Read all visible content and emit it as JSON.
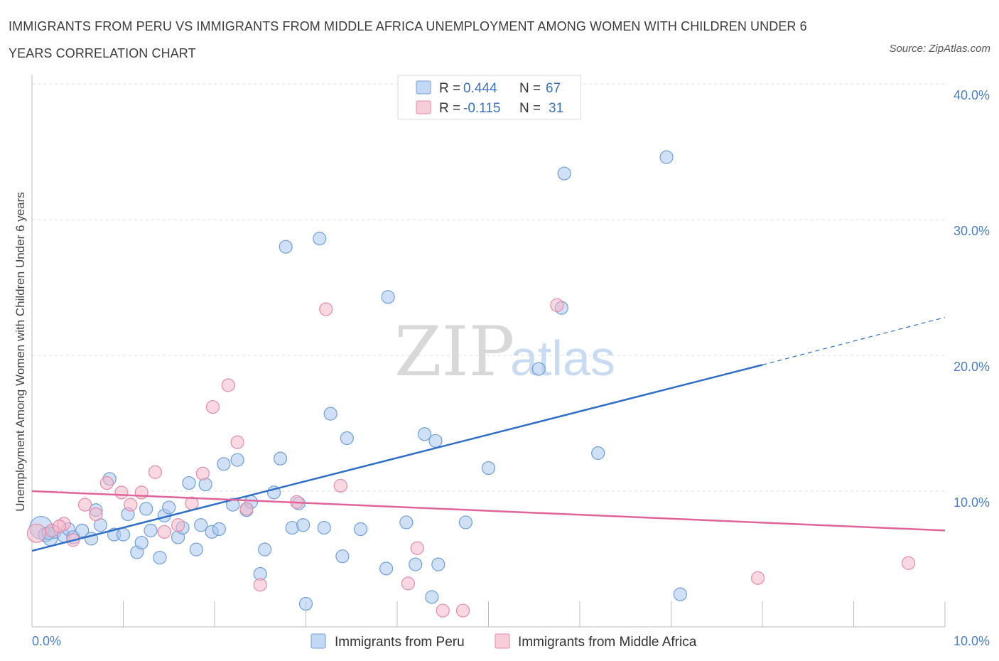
{
  "header": {
    "title": "IMMIGRANTS FROM PERU VS IMMIGRANTS FROM MIDDLE AFRICA UNEMPLOYMENT AMONG WOMEN WITH CHILDREN UNDER 6 YEARS CORRELATION CHART",
    "source": "Source: ZipAtlas.com"
  },
  "watermark": {
    "zip": "ZIP",
    "atlas": "atlas"
  },
  "legend": {
    "rows": [
      {
        "r_label": "R =",
        "r_value": "0.444",
        "n_label": "N =",
        "n_value": "67",
        "color": "#a9c8f0"
      },
      {
        "r_label": "R =",
        "r_value": "-0.115",
        "n_label": "N =",
        "n_value": "31",
        "color": "#f5b8cb"
      }
    ]
  },
  "chart_data": {
    "type": "scatter",
    "title": "IMMIGRANTS FROM PERU VS IMMIGRANTS FROM MIDDLE AFRICA UNEMPLOYMENT AMONG WOMEN WITH CHILDREN UNDER 6 YEARS CORRELATION CHART",
    "ylabel": "Unemployment Among Women with Children Under 6 years",
    "xlabel": "",
    "xlim": [
      0,
      10
    ],
    "ylim": [
      0,
      40
    ],
    "x_tick_labels": [
      "0.0%",
      "10.0%"
    ],
    "y_tick_labels": [
      "10.0%",
      "20.0%",
      "30.0%",
      "40.0%"
    ],
    "y_ticks": [
      10,
      20,
      30,
      40
    ],
    "grid": "horizontal dashed",
    "legend_placement": "top-center",
    "series": [
      {
        "name": "Immigrants from Peru",
        "color": "#a9c8f0",
        "edge": "#6e9fd8",
        "trend_color": "#2f6fc7",
        "trend": {
          "x0": 0,
          "y0": 5.6,
          "x1": 8.0,
          "y1": 19.3,
          "dashed_to_x": 10.0,
          "dashed_to_y": 22.8
        },
        "points": [
          [
            0.1,
            7.3,
            16
          ],
          [
            0.15,
            6.8,
            10
          ],
          [
            0.2,
            6.5,
            10
          ],
          [
            0.25,
            7.0,
            9
          ],
          [
            0.35,
            6.7,
            9
          ],
          [
            0.4,
            7.2,
            9
          ],
          [
            0.55,
            7.1,
            9
          ],
          [
            0.65,
            6.5,
            9
          ],
          [
            0.7,
            8.6,
            9
          ],
          [
            0.75,
            7.5,
            9
          ],
          [
            0.85,
            10.9,
            9
          ],
          [
            0.9,
            6.8,
            9
          ],
          [
            1.0,
            6.8,
            9
          ],
          [
            1.05,
            8.3,
            9
          ],
          [
            1.15,
            5.5,
            9
          ],
          [
            1.2,
            6.2,
            9
          ],
          [
            1.25,
            8.7,
            9
          ],
          [
            1.3,
            7.1,
            9
          ],
          [
            1.4,
            5.1,
            9
          ],
          [
            1.45,
            8.2,
            9
          ],
          [
            1.5,
            8.8,
            9
          ],
          [
            1.6,
            6.6,
            9
          ],
          [
            1.65,
            7.3,
            9
          ],
          [
            1.72,
            10.6,
            9
          ],
          [
            1.8,
            5.7,
            9
          ],
          [
            1.85,
            7.5,
            9
          ],
          [
            1.9,
            10.5,
            9
          ],
          [
            1.97,
            7.0,
            9
          ],
          [
            2.05,
            7.2,
            9
          ],
          [
            2.1,
            12.0,
            9
          ],
          [
            2.2,
            9.0,
            9
          ],
          [
            2.25,
            12.3,
            9
          ],
          [
            2.35,
            8.6,
            9
          ],
          [
            2.4,
            9.2,
            9
          ],
          [
            2.5,
            3.9,
            9
          ],
          [
            2.55,
            5.7,
            9
          ],
          [
            2.65,
            9.9,
            9
          ],
          [
            2.72,
            12.4,
            9
          ],
          [
            2.78,
            28.0,
            9
          ],
          [
            2.85,
            7.3,
            9
          ],
          [
            2.92,
            9.1,
            9
          ],
          [
            2.97,
            7.5,
            9
          ],
          [
            3.0,
            1.7,
            9
          ],
          [
            3.15,
            28.6,
            9
          ],
          [
            3.2,
            7.3,
            9
          ],
          [
            3.27,
            15.7,
            9
          ],
          [
            3.4,
            5.2,
            9
          ],
          [
            3.45,
            13.9,
            9
          ],
          [
            3.6,
            7.2,
            9
          ],
          [
            3.88,
            4.3,
            9
          ],
          [
            3.9,
            24.3,
            9
          ],
          [
            4.1,
            7.7,
            9
          ],
          [
            4.2,
            4.6,
            9
          ],
          [
            4.3,
            14.2,
            9
          ],
          [
            4.38,
            2.2,
            9
          ],
          [
            4.42,
            13.7,
            9
          ],
          [
            4.45,
            4.6,
            9
          ],
          [
            4.75,
            7.7,
            9
          ],
          [
            5.0,
            11.7,
            9
          ],
          [
            5.55,
            19.0,
            9
          ],
          [
            5.8,
            23.5,
            9
          ],
          [
            5.83,
            33.4,
            9
          ],
          [
            6.2,
            12.8,
            9
          ],
          [
            6.95,
            34.6,
            9
          ],
          [
            7.1,
            2.4,
            9
          ],
          [
            0.18,
            6.9,
            9
          ],
          [
            0.45,
            6.6,
            9
          ]
        ]
      },
      {
        "name": "Immigrants from Middle Africa",
        "color": "#f5b8cb",
        "edge": "#e58aa7",
        "trend_color": "#e0649a",
        "trend": {
          "x0": 0,
          "y0": 10.0,
          "x1": 10.0,
          "y1": 7.1
        },
        "points": [
          [
            0.05,
            6.9,
            13
          ],
          [
            0.22,
            7.1,
            9
          ],
          [
            0.35,
            7.6,
            9
          ],
          [
            0.45,
            6.4,
            9
          ],
          [
            0.58,
            9.0,
            9
          ],
          [
            0.7,
            8.3,
            9
          ],
          [
            0.82,
            10.6,
            9
          ],
          [
            0.98,
            9.9,
            9
          ],
          [
            1.08,
            9.0,
            9
          ],
          [
            1.2,
            9.9,
            9
          ],
          [
            1.35,
            11.4,
            9
          ],
          [
            1.45,
            7.0,
            9
          ],
          [
            1.6,
            7.5,
            9
          ],
          [
            1.75,
            9.1,
            9
          ],
          [
            1.87,
            11.3,
            9
          ],
          [
            1.98,
            16.2,
            9
          ],
          [
            2.15,
            17.8,
            9
          ],
          [
            2.25,
            13.6,
            9
          ],
          [
            2.35,
            8.7,
            9
          ],
          [
            2.5,
            3.1,
            9
          ],
          [
            2.9,
            9.2,
            9
          ],
          [
            3.22,
            23.4,
            9
          ],
          [
            3.38,
            10.4,
            9
          ],
          [
            4.12,
            3.2,
            9
          ],
          [
            4.22,
            5.8,
            9
          ],
          [
            4.5,
            1.2,
            9
          ],
          [
            4.72,
            1.2,
            9
          ],
          [
            5.75,
            23.7,
            9
          ],
          [
            7.95,
            3.6,
            9
          ],
          [
            9.6,
            4.7,
            9
          ],
          [
            0.3,
            7.4,
            9
          ]
        ]
      }
    ]
  }
}
